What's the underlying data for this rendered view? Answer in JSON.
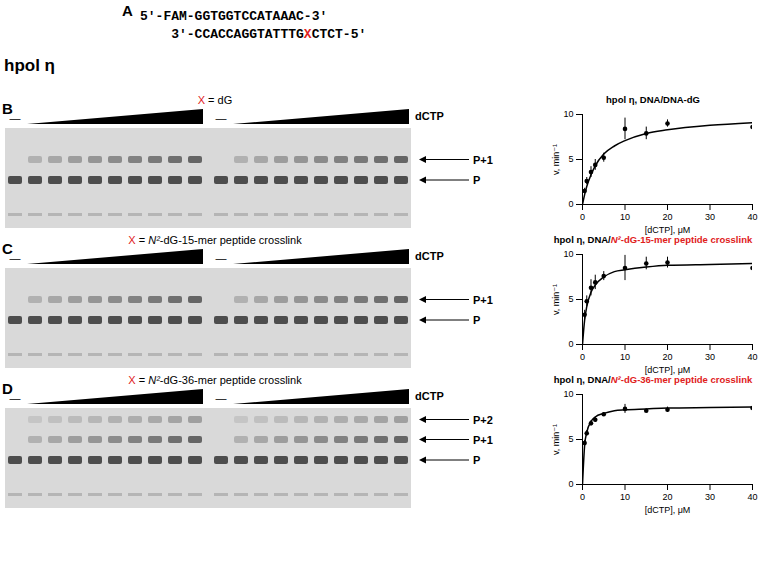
{
  "panel_a": {
    "label": "A",
    "strand_top": [
      {
        "text": "5′-FAM-GGTGGTCCATAAAC-3′"
      }
    ],
    "strand_bottom": [
      {
        "text": "3′-CCACCAGGTATTTG"
      },
      {
        "text": "X",
        "color": "#e0201b"
      },
      {
        "text": "CTCT-5′"
      }
    ]
  },
  "protein": "hpol η",
  "gels": [
    {
      "panel": "B",
      "title": [
        {
          "text": "X",
          "color": "#e0201b"
        },
        {
          "text": " = dG"
        }
      ],
      "reagent": "dCTP",
      "no_reagent": "—",
      "bands": [
        "P+1",
        "P"
      ]
    },
    {
      "panel": "C",
      "title": [
        {
          "text": "X",
          "color": "#e0201b"
        },
        {
          "text": " = "
        },
        {
          "text": "N²",
          "italic": true
        },
        {
          "text": "-dG-15-mer peptide crosslink"
        }
      ],
      "reagent": "dCTP",
      "no_reagent": "—",
      "bands": [
        "P+1",
        "P"
      ]
    },
    {
      "panel": "D",
      "title": [
        {
          "text": "X",
          "color": "#e0201b"
        },
        {
          "text": " = "
        },
        {
          "text": "N²",
          "italic": true
        },
        {
          "text": "-dG-36-mer peptide crosslink"
        }
      ],
      "reagent": "dCTP",
      "no_reagent": "—",
      "bands": [
        "P+2",
        "P+1",
        "P"
      ]
    }
  ],
  "chart_data": [
    {
      "type": "scatter",
      "title": [
        {
          "text": "hpol η, DNA/DNA-dG"
        }
      ],
      "x_label": "[dCTP], μM",
      "y_label": "v, min⁻¹",
      "x": [
        0.5,
        1,
        2,
        3,
        5,
        10,
        15,
        20,
        40
      ],
      "values": [
        1.5,
        2.6,
        3.6,
        4.4,
        5.2,
        8.4,
        7.9,
        9.0,
        8.6
      ],
      "errors": [
        0.3,
        0.4,
        0.6,
        0.6,
        0.5,
        1.2,
        0.7,
        0.4,
        0.3
      ],
      "fit_x": [
        0,
        0.5,
        1,
        2,
        3,
        5,
        7.5,
        10,
        15,
        20,
        30,
        40
      ],
      "fit_values": [
        0,
        1.1,
        2.0,
        3.3,
        4.3,
        5.6,
        6.5,
        7.1,
        7.9,
        8.3,
        8.8,
        9.1
      ],
      "xlim": [
        0,
        40
      ],
      "ylim": [
        0,
        10
      ],
      "xticks": [
        0,
        10,
        20,
        30,
        40
      ],
      "yticks": [
        0,
        5,
        10
      ],
      "color": "#000000",
      "marker": "circle"
    },
    {
      "type": "scatter",
      "title": [
        {
          "text": "hpol η, DNA/"
        },
        {
          "text": "N²",
          "italic": true,
          "color": "#e0201b"
        },
        {
          "text": "-dG-15-mer peptide crosslink",
          "color": "#e0201b"
        }
      ],
      "x_label": "[dCTP], μM",
      "y_label": "v, min⁻¹",
      "x": [
        0.5,
        1,
        2,
        3,
        5,
        10,
        15,
        20,
        40
      ],
      "values": [
        3.3,
        4.8,
        6.3,
        6.9,
        7.6,
        8.5,
        9.0,
        9.1,
        8.5
      ],
      "errors": [
        0.5,
        0.6,
        0.9,
        0.8,
        0.5,
        1.4,
        0.7,
        0.6,
        0.8
      ],
      "fit_x": [
        0,
        0.5,
        1,
        2,
        3,
        5,
        7.5,
        10,
        15,
        20,
        30,
        40
      ],
      "fit_values": [
        0,
        2.7,
        4.2,
        5.8,
        6.6,
        7.5,
        8.1,
        8.3,
        8.6,
        8.8,
        8.9,
        9.0
      ],
      "xlim": [
        0,
        40
      ],
      "ylim": [
        0,
        10
      ],
      "xticks": [
        0,
        10,
        20,
        30,
        40
      ],
      "yticks": [
        0,
        5,
        10
      ],
      "color": "#000000",
      "marker": "circle"
    },
    {
      "type": "scatter",
      "title": [
        {
          "text": "hpol η, DNA/"
        },
        {
          "text": "N²",
          "italic": true,
          "color": "#e0201b"
        },
        {
          "text": "-dG-36-mer peptide crosslink",
          "color": "#e0201b"
        }
      ],
      "x_label": "[dCTP], μM",
      "y_label": "v, min⁻¹",
      "x": [
        0.5,
        1,
        2,
        3,
        5,
        10,
        15,
        20,
        40
      ],
      "values": [
        4.6,
        5.7,
        6.8,
        7.2,
        7.8,
        8.4,
        8.2,
        8.3,
        8.5
      ],
      "errors": [
        0.3,
        0.3,
        0.3,
        0.3,
        0.2,
        0.5,
        0.2,
        0.3,
        0.9
      ],
      "fit_x": [
        0,
        0.5,
        1,
        2,
        3,
        5,
        7.5,
        10,
        15,
        20,
        30,
        40
      ],
      "fit_values": [
        0,
        4.35,
        5.8,
        7.0,
        7.5,
        7.9,
        8.2,
        8.3,
        8.4,
        8.5,
        8.55,
        8.6
      ],
      "xlim": [
        0,
        40
      ],
      "ylim": [
        0,
        10
      ],
      "xticks": [
        0,
        10,
        20,
        30,
        40
      ],
      "yticks": [
        0,
        5,
        10
      ],
      "color": "#000000",
      "marker": "circle"
    }
  ]
}
